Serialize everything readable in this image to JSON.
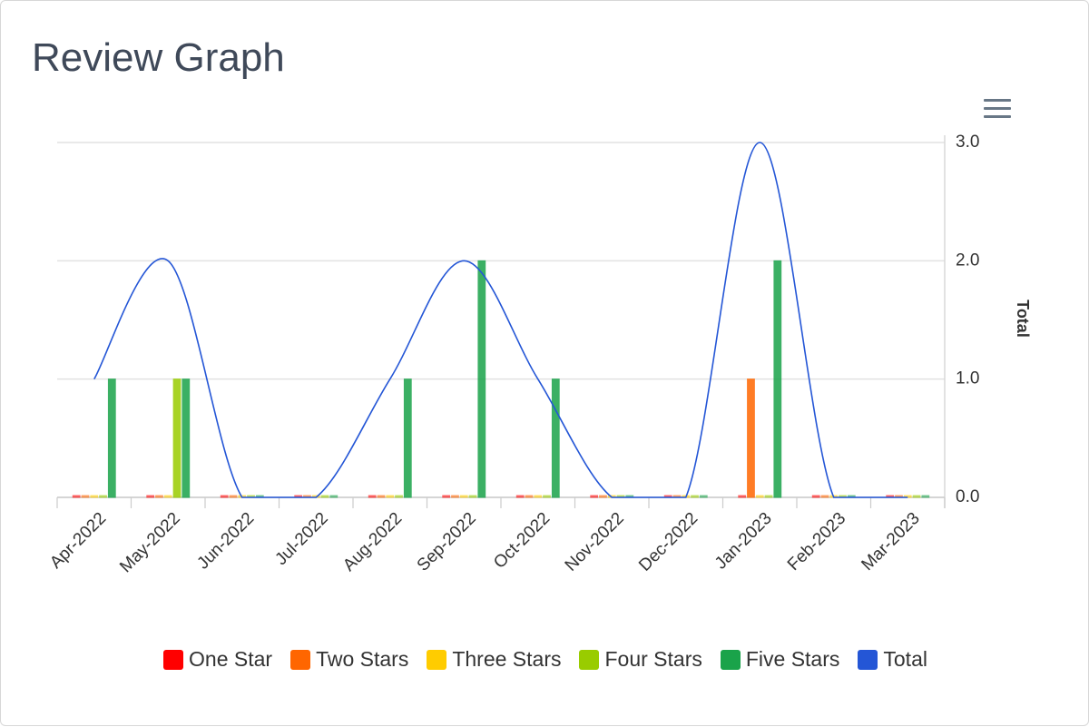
{
  "page": {
    "title": "Review Graph"
  },
  "menu": {
    "icon": "hamburger-menu-icon"
  },
  "chart_data": {
    "type": "bar",
    "title": "Review Graph",
    "categories": [
      "Apr-2022",
      "May-2022",
      "Jun-2022",
      "Jul-2022",
      "Aug-2022",
      "Sep-2022",
      "Oct-2022",
      "Nov-2022",
      "Dec-2022",
      "Jan-2023",
      "Feb-2023",
      "Mar-2023"
    ],
    "series": [
      {
        "name": "One Star",
        "color": "#ff0000",
        "values": [
          0,
          0,
          0,
          0,
          0,
          0,
          0,
          0,
          0,
          0,
          0,
          0
        ]
      },
      {
        "name": "Two Stars",
        "color": "#ff6600",
        "values": [
          0,
          0,
          0,
          0,
          0,
          0,
          0,
          0,
          0,
          1,
          0,
          0
        ]
      },
      {
        "name": "Three Stars",
        "color": "#ffcc00",
        "values": [
          0,
          0,
          0,
          0,
          0,
          0,
          0,
          0,
          0,
          0,
          0,
          0
        ]
      },
      {
        "name": "Four Stars",
        "color": "#99cc00",
        "values": [
          0,
          1,
          0,
          0,
          0,
          0,
          0,
          0,
          0,
          0,
          0,
          0
        ]
      },
      {
        "name": "Five Stars",
        "color": "#1aa34a",
        "values": [
          1,
          1,
          0,
          0,
          1,
          2,
          1,
          0,
          0,
          2,
          0,
          0
        ]
      }
    ],
    "line_series": {
      "name": "Total",
      "type": "spline",
      "color": "#2456d6",
      "values": [
        1,
        2,
        0,
        0,
        1,
        2,
        1,
        0,
        0,
        3,
        0,
        0
      ]
    },
    "y_axis": {
      "title": "Total",
      "position": "right",
      "range": [
        0,
        3
      ],
      "ticks": [
        "0.0",
        "1.0",
        "2.0",
        "3.0"
      ]
    },
    "grid": true,
    "legend_position": "bottom-center"
  }
}
